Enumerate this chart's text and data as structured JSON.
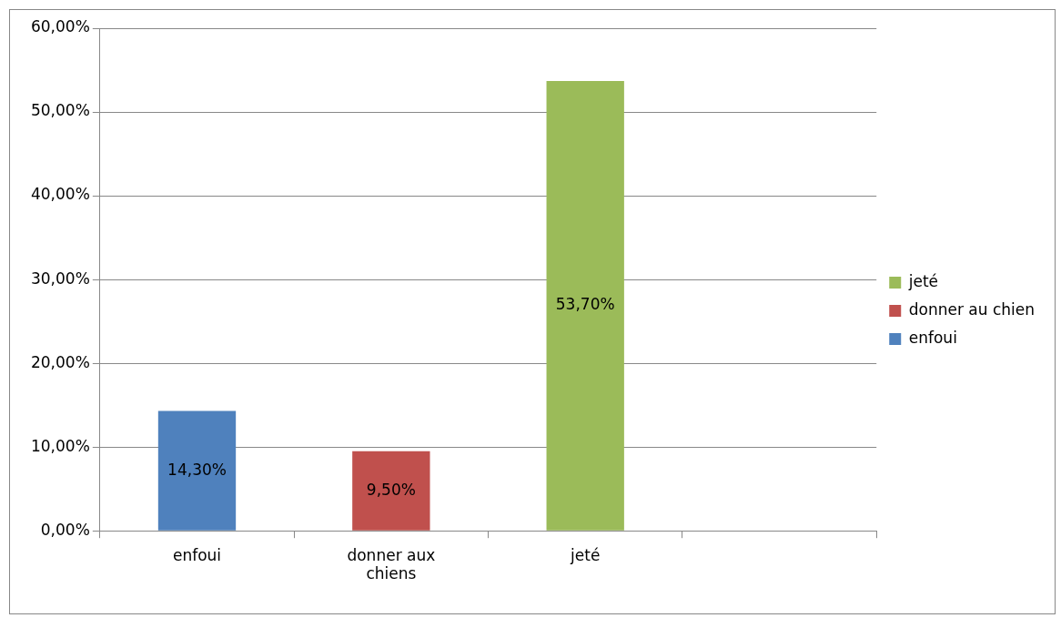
{
  "chart_data": {
    "type": "bar",
    "stacked": true,
    "categories": [
      "enfoui",
      "donner aux chiens",
      "jeté",
      null
    ],
    "series": [
      {
        "name": "enfoui",
        "color": "#4f81bd",
        "values": [
          14.3,
          null,
          null,
          null
        ],
        "value_labels": [
          "14,30%",
          null,
          null,
          null
        ]
      },
      {
        "name": "donner au chien",
        "color": "#c0504d",
        "values": [
          null,
          9.5,
          null,
          null
        ],
        "value_labels": [
          null,
          "9,50%",
          null,
          null
        ]
      },
      {
        "name": "jeté",
        "color": "#9bbb59",
        "values": [
          null,
          null,
          53.7,
          null
        ],
        "value_labels": [
          null,
          null,
          "53,70%",
          null
        ]
      }
    ],
    "ylim": [
      0,
      60
    ],
    "yticks": [
      {
        "value": 0,
        "label": "0,00%"
      },
      {
        "value": 10,
        "label": "10,00%"
      },
      {
        "value": 20,
        "label": "20,00%"
      },
      {
        "value": 30,
        "label": "30,00%"
      },
      {
        "value": 40,
        "label": "40,00%"
      },
      {
        "value": 50,
        "label": "50,00%"
      },
      {
        "value": 60,
        "label": "60,00%"
      }
    ],
    "grid": "y",
    "legend": "right"
  }
}
